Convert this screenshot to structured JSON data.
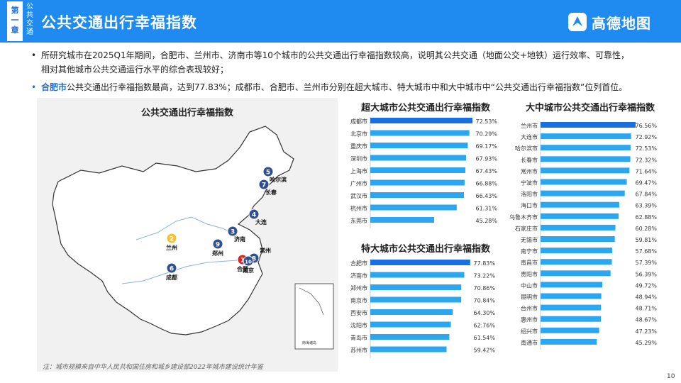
{
  "header": {
    "chapter": [
      "第",
      "一",
      "章"
    ],
    "chapter_sub": [
      "公",
      "共",
      "交",
      "通"
    ],
    "title": "公共交通出行幸福指数",
    "logo_text": "高德地图"
  },
  "bullets": [
    {
      "text": "所研究城市在2025Q1年期间，合肥市、兰州市、济南市等10个城市的公共交通出行幸福指数较高，说明其公共交通（地面公交+地铁）运行效率、可靠性，相对其他城市公共交通运行水平的综合表现较好；"
    },
    {
      "highlight": "合肥市",
      "text": "公共交通出行幸福指数最高，达到77.83%；成都市、合肥市、兰州市分别在超大城市、特大城市中和大中城市中“公共交通出行幸福指数”位列首位。"
    }
  ],
  "map": {
    "title": "公共交通出行幸福指数",
    "markers": [
      {
        "rank": "1",
        "city": "合肥",
        "color": "#e02020"
      },
      {
        "rank": "2",
        "city": "兰州",
        "color": "#f2c232"
      },
      {
        "rank": "3",
        "city": "济南",
        "color": "#2f4f8f"
      },
      {
        "rank": "4",
        "city": "大连",
        "color": "#2f4f8f"
      },
      {
        "rank": "5",
        "city": "哈尔滨",
        "color": "#2f4f8f"
      },
      {
        "rank": "6",
        "city": "成都",
        "color": "#2f4f8f"
      },
      {
        "rank": "7",
        "city": "长春",
        "color": "#2f4f8f"
      },
      {
        "rank": "8",
        "city": "常州",
        "color": "#2f4f8f"
      },
      {
        "rank": "9",
        "city": "郑州",
        "color": "#2f4f8f"
      },
      {
        "rank": "10",
        "city": "南京",
        "color": "#2f4f8f"
      }
    ],
    "inset_label": "南海诸岛"
  },
  "note": "注：城市规模来自中华人民共和国住房和城乡建设部2022年城市建设统计年鉴",
  "page_number": "10",
  "colors": {
    "top_bar": "#1a6fe0",
    "bar": "#2aa7f0",
    "accent": "#1f8bf0"
  },
  "chart_data": [
    {
      "type": "bar",
      "title": "超大城市公共交通出行幸福指数",
      "categories": [
        "成都市",
        "北京市",
        "重庆市",
        "深圳市",
        "上海市",
        "广州市",
        "武汉市",
        "杭州市",
        "东莞市"
      ],
      "values": [
        72.53,
        70.29,
        69.17,
        67.93,
        67.43,
        66.88,
        66.43,
        61.31,
        45.28
      ],
      "labels": [
        "72.53%",
        "70.29%",
        "69.17%",
        "67.93%",
        "67.43%",
        "66.88%",
        "66.43%",
        "61.31%",
        "45.28%"
      ],
      "xlim": [
        0,
        78
      ]
    },
    {
      "type": "bar",
      "title": "特大城市公共交通出行幸福指数",
      "categories": [
        "合肥市",
        "济南市",
        "郑州市",
        "南京市",
        "西安市",
        "沈阳市",
        "青岛市",
        "苏州市"
      ],
      "values": [
        77.83,
        73.22,
        70.86,
        70.84,
        64.3,
        62.76,
        61.54,
        59.42
      ],
      "labels": [
        "77.83%",
        "73.22%",
        "70.86%",
        "70.84%",
        "64.30%",
        "62.76%",
        "61.54%",
        "59.42%"
      ],
      "xlim": [
        0,
        84
      ]
    },
    {
      "type": "bar",
      "title": "大中城市公共交通出行幸福指数",
      "categories": [
        "兰州市",
        "大连市",
        "哈尔滨市",
        "长春市",
        "常州市",
        "宁波市",
        "洛阳市",
        "海口市",
        "乌鲁木齐市",
        "石家庄市",
        "无锡市",
        "南宁市",
        "南昌市",
        "贵阳市",
        "中山市",
        "昆明市",
        "台州市",
        "惠州市",
        "绍兴市",
        "南通市"
      ],
      "values": [
        76.56,
        72.92,
        72.53,
        72.32,
        71.64,
        69.47,
        67.84,
        63.39,
        62.88,
        60.28,
        59.81,
        57.68,
        57.39,
        56.39,
        49.72,
        48.94,
        48.71,
        48.67,
        47.23,
        45.29
      ],
      "labels": [
        "76.56%",
        "72.92%",
        "72.53%",
        "72.32%",
        "71.64%",
        "69.47%",
        "67.84%",
        "63.39%",
        "62.88%",
        "60.28%",
        "59.81%",
        "57.68%",
        "57.39%",
        "56.39%",
        "49.72%",
        "48.94%",
        "48.71%",
        "48.67%",
        "47.23%",
        "45.29%"
      ],
      "xlim": [
        0,
        80
      ]
    }
  ]
}
